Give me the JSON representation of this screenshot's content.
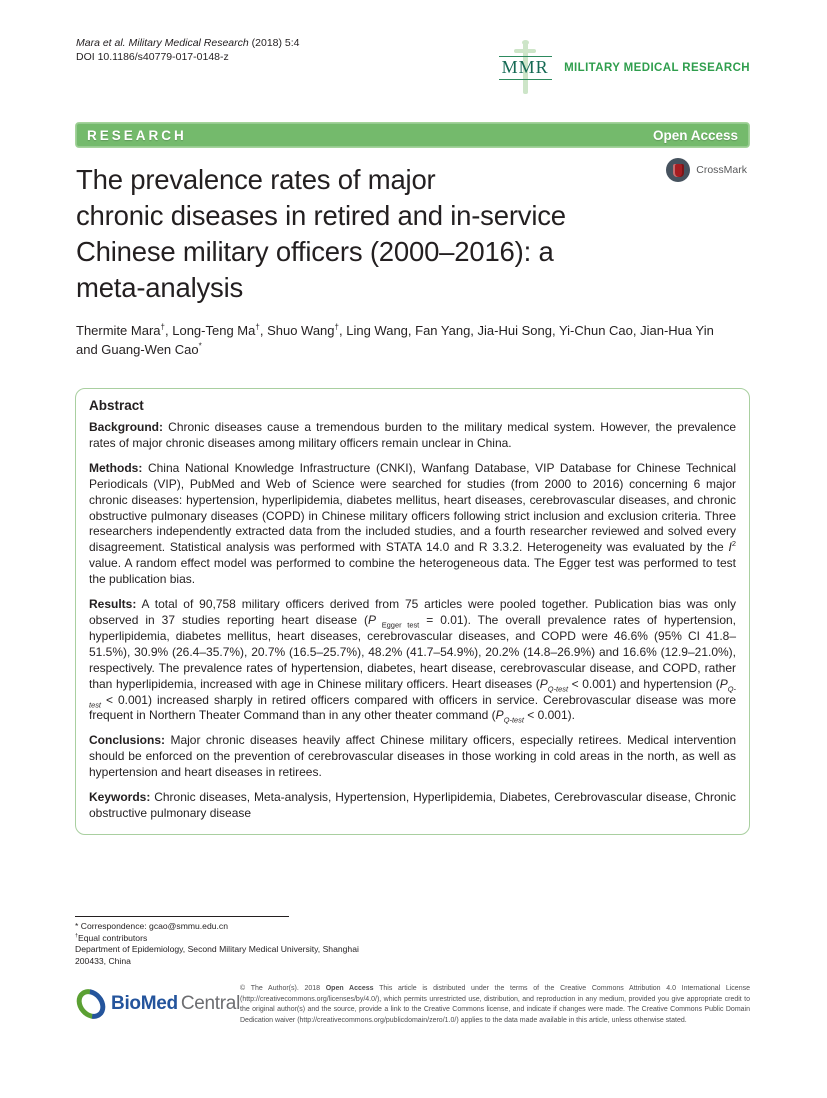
{
  "colors": {
    "banner_green": "#74ba6c",
    "journal_green": "#2f9e4d",
    "mmr_green": "#156a54",
    "abstract_border": "#a9cfa0",
    "crossmark_red": "#a51d21",
    "biomed_blue": "#24549c",
    "biomed_green": "#5ba033"
  },
  "header": {
    "citation_parts": [
      {
        "text": "Mara et al. Military Medical Research",
        "style": "i"
      },
      {
        "text": " (2018) 5:4"
      }
    ],
    "doi": "DOI 10.1186/s40779-017-0148-z",
    "journal_abbr": "MMR",
    "journal_name": "MILITARY MEDICAL RESEARCH"
  },
  "banner": {
    "type_label": "RESEARCH",
    "access_label": "Open Access"
  },
  "article": {
    "title_lines": [
      "The prevalence rates of major",
      "chronic diseases in retired and in-service",
      "Chinese military officers (2000–2016): a",
      "meta-analysis"
    ],
    "crossmark_label": "CrossMark",
    "authors_parts": [
      {
        "text": "Thermite Mara"
      },
      {
        "text": "†",
        "style": "sup"
      },
      {
        "text": ", Long-Teng Ma"
      },
      {
        "text": "†",
        "style": "sup"
      },
      {
        "text": ", Shuo Wang"
      },
      {
        "text": "†",
        "style": "sup"
      },
      {
        "text": ", Ling Wang, Fan Yang, Jia-Hui Song, Yi-Chun Cao, Jian-Hua Yin and Guang-Wen Cao"
      },
      {
        "text": "*",
        "style": "sup"
      }
    ]
  },
  "abstract": {
    "heading": "Abstract",
    "sections": [
      {
        "label": "Background:",
        "parts": [
          {
            "text": " Chronic diseases cause a tremendous burden to the military medical system. However, the prevalence rates of major chronic diseases among military officers remain unclear in China."
          }
        ]
      },
      {
        "label": "Methods:",
        "parts": [
          {
            "text": " China National Knowledge Infrastructure (CNKI), Wanfang Database, VIP Database for Chinese Technical Periodicals (VIP), PubMed and Web of Science were searched for studies (from 2000 to 2016) concerning 6 major chronic diseases: hypertension, hyperlipidemia, diabetes mellitus, heart diseases, cerebrovascular diseases, and chronic obstructive pulmonary diseases (COPD) in Chinese military officers following strict inclusion and exclusion criteria. Three researchers independently extracted data from the included studies, and a fourth researcher reviewed and solved every disagreement. Statistical analysis was performed with STATA 14.0 and R 3.3.2. Heterogeneity was evaluated by the "
          },
          {
            "text": "I",
            "style": "i"
          },
          {
            "text": "2",
            "style": "sup"
          },
          {
            "text": " value. A random effect model was performed to combine the heterogeneous data. The Egger test was performed to test the publication bias."
          }
        ]
      },
      {
        "label": "Results:",
        "parts": [
          {
            "text": " A total of 90,758 military officers derived from 75 articles were pooled together. Publication bias was only observed in 37 studies reporting heart disease ("
          },
          {
            "text": "P",
            "style": "i"
          },
          {
            "text": " Egger test",
            "style": "sub"
          },
          {
            "text": " = 0.01). The overall prevalence rates of hypertension, hyperlipidemia, diabetes mellitus, heart diseases, cerebrovascular diseases, and COPD were 46.6% (95% CI 41.8–51.5%), 30.9% (26.4–35.7%), 20.7% (16.5–25.7%), 48.2% (41.7–54.9%), 20.2% (14.8–26.9%) and 16.6% (12.9–21.0%), respectively. The prevalence rates of hypertension, diabetes, heart disease, cerebrovascular disease, and COPD, rather than hyperlipidemia, increased with age in Chinese military officers. Heart diseases ("
          },
          {
            "text": "P",
            "style": "i"
          },
          {
            "text": "Q-test",
            "style": "isub"
          },
          {
            "text": " < 0.001) and hypertension ("
          },
          {
            "text": "P",
            "style": "i"
          },
          {
            "text": "Q-test",
            "style": "isub"
          },
          {
            "text": " < 0.001) increased sharply in retired officers compared with officers in service. Cerebrovascular disease was more frequent in Northern Theater Command than in any other theater command ("
          },
          {
            "text": "P",
            "style": "i"
          },
          {
            "text": "Q-test",
            "style": "isub"
          },
          {
            "text": " < 0.001)."
          }
        ]
      },
      {
        "label": "Conclusions:",
        "parts": [
          {
            "text": " Major chronic diseases heavily affect Chinese military officers, especially retirees. Medical intervention should be enforced on the prevention of cerebrovascular diseases in those working in cold areas in the north, as well as hypertension and heart diseases in retirees."
          }
        ]
      },
      {
        "label": "Keywords:",
        "parts": [
          {
            "text": " Chronic diseases, Meta-analysis, Hypertension, Hyperlipidemia, Diabetes, Cerebrovascular disease, Chronic obstructive pulmonary disease"
          }
        ]
      }
    ]
  },
  "footnotes": {
    "correspondence_parts": [
      {
        "text": "* Correspondence: "
      },
      {
        "text": "gcao@smmu.edu.cn"
      }
    ],
    "equal_parts": [
      {
        "text": "†",
        "style": "sup"
      },
      {
        "text": "Equal contributors"
      }
    ],
    "affiliation": "Department of Epidemiology, Second Military Medical University, Shanghai 200433, China"
  },
  "publisher": {
    "logo_bio": "BioMed",
    "logo_central": "Central",
    "license_parts": [
      {
        "text": "© The Author(s). 2018 "
      },
      {
        "text": "Open Access",
        "style": "b"
      },
      {
        "text": " This article is distributed under the terms of the Creative Commons Attribution 4.0 International License (http://creativecommons.org/licenses/by/4.0/), which permits unrestricted use, distribution, and reproduction in any medium, provided you give appropriate credit to the original author(s) and the source, provide a link to the Creative Commons license, and indicate if changes were made. The Creative Commons Public Domain Dedication waiver (http://creativecommons.org/publicdomain/zero/1.0/) applies to the data made available in this article, unless otherwise stated."
      }
    ]
  }
}
